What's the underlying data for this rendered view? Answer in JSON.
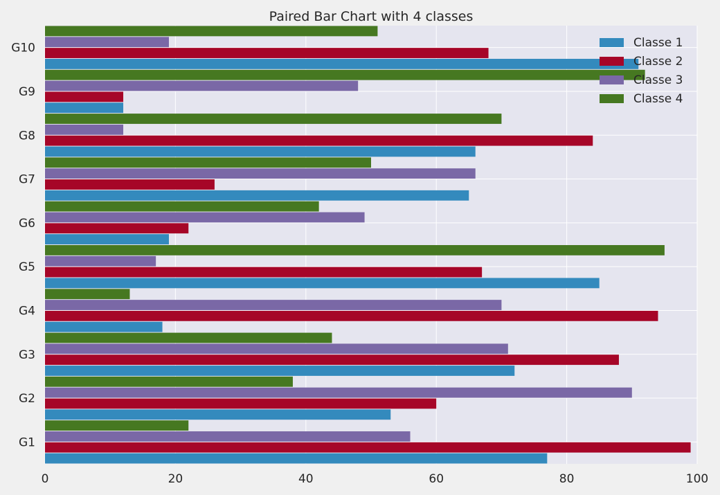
{
  "chart_data": {
    "type": "bar",
    "orientation": "horizontal",
    "title": "Paired Bar Chart with 4 classes",
    "xlabel": "",
    "ylabel": "",
    "xlim": [
      0,
      100
    ],
    "xticks": [
      0,
      20,
      40,
      60,
      80,
      100
    ],
    "categories": [
      "G1",
      "G2",
      "G3",
      "G4",
      "G5",
      "G6",
      "G7",
      "G8",
      "G9",
      "G10"
    ],
    "series": [
      {
        "name": "Classe 1",
        "color": "#348abd",
        "values": [
          77,
          53,
          72,
          18,
          85,
          19,
          65,
          66,
          12,
          91
        ]
      },
      {
        "name": "Classe 2",
        "color": "#a60628",
        "values": [
          99,
          60,
          88,
          94,
          67,
          22,
          26,
          84,
          12,
          68
        ]
      },
      {
        "name": "Classe 3",
        "color": "#7a68a6",
        "values": [
          56,
          90,
          71,
          70,
          17,
          49,
          66,
          12,
          48,
          19
        ]
      },
      {
        "name": "Classe 4",
        "color": "#467821",
        "values": [
          22,
          38,
          44,
          13,
          95,
          42,
          50,
          70,
          92,
          51
        ]
      }
    ],
    "grid": true,
    "legend_position": "top-right",
    "background": "#e5e5ef"
  }
}
